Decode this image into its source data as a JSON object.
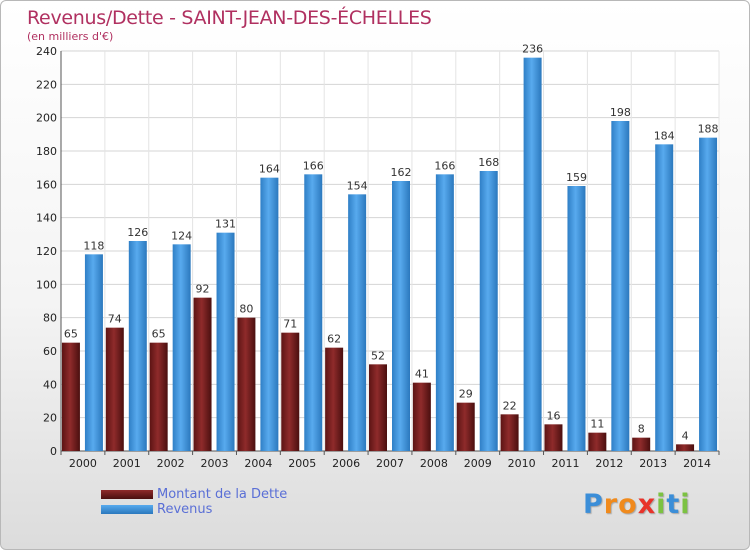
{
  "title": "Revenus/Dette - SAINT-JEAN-DES-ÉCHELLES",
  "subtitle": "(en milliers d'€)",
  "colors": {
    "title": "#b03060",
    "dette": "#7a1f1f",
    "revenus": "#3d93d9",
    "legend_text": "#5a6fd6"
  },
  "chart_data": {
    "type": "bar",
    "categories": [
      "2000",
      "2001",
      "2002",
      "2003",
      "2004",
      "2005",
      "2006",
      "2007",
      "2008",
      "2009",
      "2010",
      "2011",
      "2012",
      "2013",
      "2014"
    ],
    "series": [
      {
        "name": "Montant de la Dette",
        "values": [
          65,
          74,
          65,
          92,
          80,
          71,
          62,
          52,
          41,
          29,
          22,
          16,
          11,
          8,
          4
        ]
      },
      {
        "name": "Revenus",
        "values": [
          118,
          126,
          124,
          131,
          164,
          166,
          154,
          162,
          166,
          168,
          236,
          159,
          198,
          184,
          188
        ]
      }
    ],
    "ylim": [
      0,
      240
    ],
    "yticks": [
      0,
      20,
      40,
      60,
      80,
      100,
      120,
      140,
      160,
      180,
      200,
      220,
      240
    ],
    "grid": true,
    "legend_position": "bottom-left"
  },
  "legend": {
    "items": [
      {
        "label": "Montant de la Dette"
      },
      {
        "label": "Revenus"
      }
    ]
  },
  "logo": {
    "letters": [
      "P",
      "r",
      "o",
      "x",
      "i",
      "t",
      "i"
    ],
    "colors": [
      "#3b8ed8",
      "#f08a1c",
      "#f08a1c",
      "#e8332a",
      "#7cc242",
      "#3b8ed8",
      "#7cc242"
    ]
  }
}
